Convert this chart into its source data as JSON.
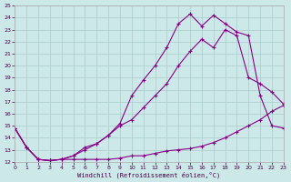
{
  "xlabel": "Windchill (Refroidissement éolien,°C)",
  "background_color": "#cce8e8",
  "grid_color": "#aacccc",
  "line_color": "#880088",
  "xlim": [
    0,
    23
  ],
  "ylim": [
    12,
    25
  ],
  "xticks": [
    0,
    1,
    2,
    3,
    4,
    5,
    6,
    7,
    8,
    9,
    10,
    11,
    12,
    13,
    14,
    15,
    16,
    17,
    18,
    19,
    20,
    21,
    22,
    23
  ],
  "yticks": [
    12,
    13,
    14,
    15,
    16,
    17,
    18,
    19,
    20,
    21,
    22,
    23,
    24,
    25
  ],
  "line1_x": [
    0,
    1,
    2,
    3,
    4,
    5,
    6,
    7,
    8,
    9,
    10,
    11,
    12,
    13,
    14,
    15,
    16,
    17,
    18,
    19,
    20,
    21,
    22,
    23
  ],
  "line1_y": [
    14.8,
    13.2,
    12.2,
    12.1,
    12.2,
    12.2,
    12.2,
    12.2,
    12.2,
    12.3,
    12.5,
    12.5,
    12.7,
    12.9,
    13.0,
    13.1,
    13.3,
    13.6,
    14.0,
    14.5,
    15.0,
    15.5,
    16.2,
    16.7
  ],
  "line2_x": [
    0,
    1,
    2,
    3,
    4,
    5,
    6,
    7,
    8,
    9,
    10,
    11,
    12,
    13,
    14,
    15,
    16,
    17,
    18,
    19,
    20,
    21,
    22,
    23
  ],
  "line2_y": [
    14.8,
    13.2,
    12.2,
    12.1,
    12.2,
    12.5,
    13.2,
    13.5,
    14.2,
    15.0,
    15.5,
    16.5,
    17.5,
    18.5,
    20.0,
    21.2,
    22.2,
    21.5,
    23.0,
    22.5,
    19.0,
    18.5,
    17.8,
    16.8
  ],
  "line3_x": [
    0,
    1,
    2,
    3,
    4,
    5,
    6,
    7,
    8,
    9,
    10,
    11,
    12,
    13,
    14,
    15,
    16,
    17,
    18,
    19,
    20,
    21,
    22,
    23
  ],
  "line3_y": [
    14.8,
    13.2,
    12.2,
    12.1,
    12.2,
    12.5,
    13.0,
    13.5,
    14.2,
    15.2,
    17.5,
    18.8,
    20.0,
    21.5,
    23.5,
    24.3,
    23.3,
    24.2,
    23.5,
    22.8,
    22.5,
    17.5,
    15.0,
    14.8
  ]
}
